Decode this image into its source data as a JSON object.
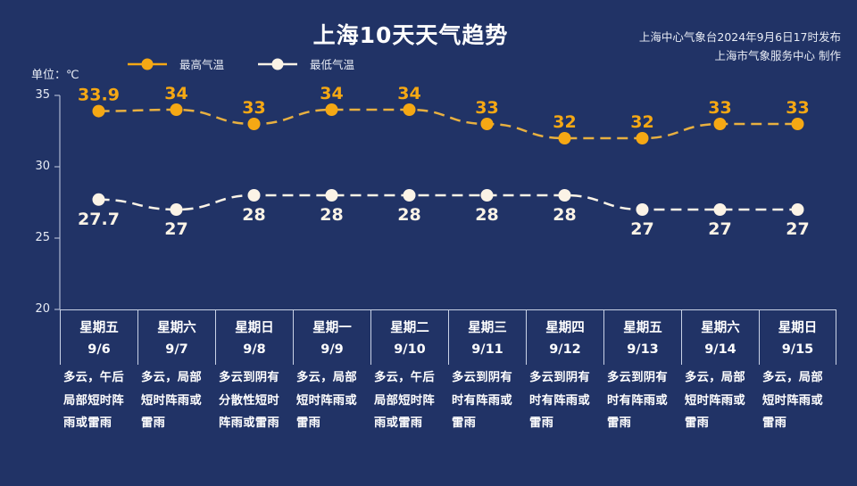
{
  "header": {
    "title": "上海10天天气趋势",
    "source_line1": "上海中心气象台2024年9月6日17时发布",
    "source_line2": "上海市气象服务中心 制作"
  },
  "unit_label": "单位：℃",
  "legend": {
    "high_label": "最高气温",
    "low_label": "最低气温"
  },
  "colors": {
    "background": "#213366",
    "high": "#F5A814",
    "high_line": "#E8B040",
    "low": "#FBF3E6",
    "axis": "#C9D2E6"
  },
  "yticks": [
    "35",
    "30",
    "25",
    "20"
  ],
  "days": [
    {
      "weekday": "星期五",
      "date": "9/6",
      "desc": [
        "多云，午后",
        "局部短时阵",
        "雨或雷雨"
      ]
    },
    {
      "weekday": "星期六",
      "date": "9/7",
      "desc": [
        "多云，局部",
        "短时阵雨或",
        "雷雨"
      ]
    },
    {
      "weekday": "星期日",
      "date": "9/8",
      "desc": [
        "多云到阴有",
        "分散性短时",
        "阵雨或雷雨"
      ]
    },
    {
      "weekday": "星期一",
      "date": "9/9",
      "desc": [
        "多云，局部",
        "短时阵雨或",
        "雷雨"
      ]
    },
    {
      "weekday": "星期二",
      "date": "9/10",
      "desc": [
        "多云，午后",
        "局部短时阵",
        "雨或雷雨"
      ]
    },
    {
      "weekday": "星期三",
      "date": "9/11",
      "desc": [
        "多云到阴有",
        "时有阵雨或",
        "雷雨"
      ]
    },
    {
      "weekday": "星期四",
      "date": "9/12",
      "desc": [
        "多云到阴有",
        "时有阵雨或",
        "雷雨"
      ]
    },
    {
      "weekday": "星期五",
      "date": "9/13",
      "desc": [
        "多云到阴有",
        "时有阵雨或",
        "雷雨"
      ]
    },
    {
      "weekday": "星期六",
      "date": "9/14",
      "desc": [
        "多云，局部",
        "短时阵雨或",
        "雷雨"
      ]
    },
    {
      "weekday": "星期日",
      "date": "9/15",
      "desc": [
        "多云，局部",
        "短时阵雨或",
        "雷雨"
      ]
    }
  ],
  "chart_data": {
    "type": "line",
    "title": "上海10天天气趋势",
    "ylabel": "单位：℃",
    "xlabel": "",
    "ylim": [
      20,
      35
    ],
    "yticks": [
      20,
      25,
      30,
      35
    ],
    "grid": false,
    "legend_position": "top",
    "categories": [
      "9/6",
      "9/7",
      "9/8",
      "9/9",
      "9/10",
      "9/11",
      "9/12",
      "9/13",
      "9/14",
      "9/15"
    ],
    "series": [
      {
        "name": "最高气温",
        "color": "#F5A814",
        "style": "dashed",
        "values": [
          33.9,
          34,
          33,
          34,
          34,
          33,
          32,
          32,
          33,
          33
        ],
        "labels": [
          "33.9",
          "34",
          "33",
          "34",
          "34",
          "33",
          "32",
          "32",
          "33",
          "33"
        ]
      },
      {
        "name": "最低气温",
        "color": "#FBF3E6",
        "style": "dashed",
        "values": [
          27.7,
          27,
          28,
          28,
          28,
          28,
          28,
          27,
          27,
          27
        ],
        "labels": [
          "27.7",
          "27",
          "28",
          "28",
          "28",
          "28",
          "28",
          "27",
          "27",
          "27"
        ]
      }
    ]
  }
}
